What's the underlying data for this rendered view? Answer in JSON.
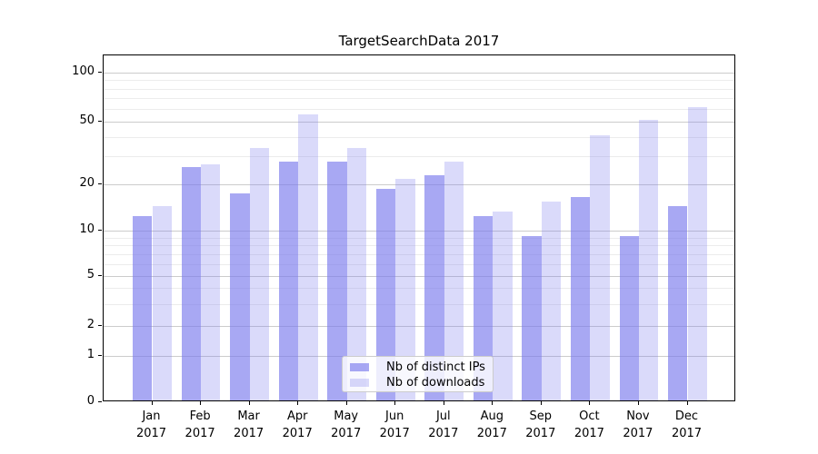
{
  "chart_data": {
    "type": "bar",
    "title": "TargetSearchData 2017",
    "categories": [
      "Jan",
      "Feb",
      "Mar",
      "Apr",
      "May",
      "Jun",
      "Jul",
      "Aug",
      "Sep",
      "Oct",
      "Nov",
      "Dec"
    ],
    "year": "2017",
    "series": [
      {
        "name": "Nb of distinct IPs",
        "color": "rgba(122,122,237,0.65)",
        "values": [
          12,
          25,
          17,
          27,
          27,
          18,
          22,
          12,
          9,
          16,
          9,
          14
        ]
      },
      {
        "name": "Nb of downloads",
        "color": "rgba(122,122,237,0.28)",
        "values": [
          14,
          26,
          33,
          54,
          33,
          21,
          27,
          13,
          15,
          40,
          50,
          60
        ]
      }
    ],
    "yscale": "symlog",
    "yticks": [
      0,
      1,
      2,
      5,
      10,
      20,
      50,
      100
    ],
    "minor_yticks": [
      3,
      4,
      6,
      7,
      8,
      9,
      30,
      40,
      60,
      70,
      80,
      90
    ],
    "ylim": [
      0,
      130
    ],
    "xlabel": "",
    "ylabel": "",
    "grid": true,
    "legend_position": "lower center",
    "colors": {
      "bar_base": "#7a7aed",
      "grid_major": "#cccccc",
      "grid_minor": "#ececec",
      "spine": "#000000"
    }
  }
}
